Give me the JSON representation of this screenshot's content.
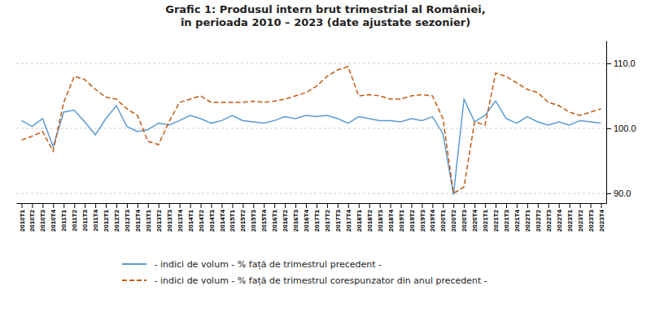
{
  "chart_data": {
    "type": "line",
    "title": "Grafic 1: Produsul intern brut trimestrial al României,\nîn perioada 2010 – 2023 (date ajustate sezonier)",
    "categories": [
      "2010T1",
      "2010T2",
      "2010T3",
      "2010T4",
      "2011T1",
      "2011T2",
      "2011T3",
      "2011T4",
      "2012T1",
      "2012T2",
      "2012T3",
      "2012T4",
      "2013T1",
      "2013T2",
      "2013T3",
      "2013T4",
      "2014T1",
      "2014T2",
      "2014T3",
      "2014T4",
      "2015T1",
      "2015T2",
      "2015T3",
      "2015T4",
      "2016T1",
      "2016T2",
      "2016T3",
      "2016T4",
      "2017T1",
      "2017T2",
      "2017T3",
      "2017T4",
      "2018T1",
      "2018T2",
      "2018T3",
      "2018T4",
      "2019T1",
      "2019T2",
      "2019T3",
      "2019T4",
      "2020T1",
      "2020T2",
      "2020T3",
      "2020T4",
      "2021T1",
      "2021T2",
      "2021T3",
      "2021T4",
      "2022T1",
      "2022T2",
      "2022T3",
      "2022T4",
      "2023T1",
      "2023T2",
      "2023T3",
      "2023T4"
    ],
    "series": [
      {
        "name": " - indici de volum - % față de trimestrul precedent -",
        "color": "#5b9bd5",
        "line_style": "solid",
        "values": [
          101.2,
          100.3,
          101.5,
          97.2,
          102.5,
          102.8,
          101.0,
          99.0,
          101.5,
          103.5,
          100.3,
          99.5,
          99.8,
          100.8,
          100.5,
          101.2,
          102.0,
          101.5,
          100.8,
          101.2,
          102.0,
          101.2,
          101.0,
          100.8,
          101.2,
          101.8,
          101.5,
          102.0,
          101.8,
          102.0,
          101.5,
          100.8,
          101.8,
          101.5,
          101.2,
          101.2,
          101.0,
          101.5,
          101.2,
          101.8,
          99.2,
          89.8,
          104.5,
          101.0,
          102.0,
          104.2,
          101.5,
          100.8,
          101.8,
          101.0,
          100.5,
          101.0,
          100.5,
          101.2,
          101.0,
          100.8
        ]
      },
      {
        "name": " - indici de volum - % față de trimestrul corespunzator din anul precedent -",
        "color": "#c55a11",
        "line_style": "dashed",
        "values": [
          98.2,
          98.8,
          99.5,
          96.5,
          104.0,
          108.0,
          107.5,
          106.0,
          104.8,
          104.5,
          103.0,
          102.0,
          98.0,
          97.5,
          101.0,
          104.0,
          104.5,
          105.0,
          104.0,
          104.0,
          104.0,
          104.0,
          104.2,
          104.0,
          104.2,
          104.5,
          105.0,
          105.5,
          106.5,
          108.0,
          109.0,
          109.5,
          105.0,
          105.2,
          105.0,
          104.5,
          104.5,
          105.0,
          105.2,
          105.0,
          101.5,
          90.0,
          91.0,
          101.0,
          100.5,
          108.5,
          108.0,
          107.0,
          106.0,
          105.5,
          104.0,
          103.5,
          102.5,
          102.0,
          102.5,
          103.0
        ]
      }
    ],
    "ylim": [
      88.5,
      113.5
    ],
    "yticks": [
      {
        "value": 90.0,
        "label": "90.0"
      },
      {
        "value": 100.0,
        "label": "100.0"
      },
      {
        "value": 110.0,
        "label": "110.0"
      }
    ],
    "grid": true,
    "legend": "bottom"
  }
}
